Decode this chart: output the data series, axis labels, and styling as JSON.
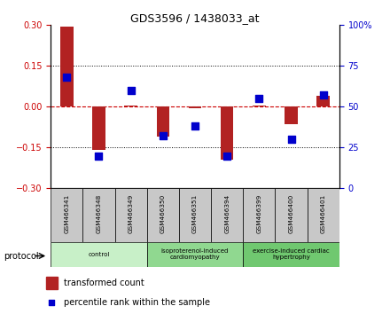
{
  "title": "GDS3596 / 1438033_at",
  "samples": [
    "GSM466341",
    "GSM466348",
    "GSM466349",
    "GSM466350",
    "GSM466351",
    "GSM466394",
    "GSM466399",
    "GSM466400",
    "GSM466401"
  ],
  "transformed_count": [
    0.295,
    -0.16,
    0.005,
    -0.11,
    -0.005,
    -0.195,
    0.005,
    -0.065,
    0.04
  ],
  "percentile_rank": [
    68,
    20,
    60,
    32,
    38,
    20,
    55,
    30,
    57
  ],
  "ylim_left": [
    -0.3,
    0.3
  ],
  "ylim_right": [
    0,
    100
  ],
  "yticks_left": [
    -0.3,
    -0.15,
    0.0,
    0.15,
    0.3
  ],
  "yticks_right": [
    0,
    25,
    50,
    75,
    100
  ],
  "groups": [
    {
      "label": "control",
      "start": 0,
      "end": 3,
      "color": "#c8f0c8"
    },
    {
      "label": "isoproterenol-induced\ncardiomyopathy",
      "start": 3,
      "end": 6,
      "color": "#90d890"
    },
    {
      "label": "exercise-induced cardiac\nhypertrophy",
      "start": 6,
      "end": 9,
      "color": "#70c870"
    }
  ],
  "bar_color": "#b22222",
  "dot_color": "#0000cc",
  "zero_line_color": "#cc0000",
  "grid_color": "#000000",
  "bg_color": "#ffffff",
  "sample_box_color": "#c8c8c8",
  "protocol_label": "protocol",
  "legend_bar_label": "transformed count",
  "legend_dot_label": "percentile rank within the sample",
  "bar_width": 0.4,
  "dot_size": 28
}
